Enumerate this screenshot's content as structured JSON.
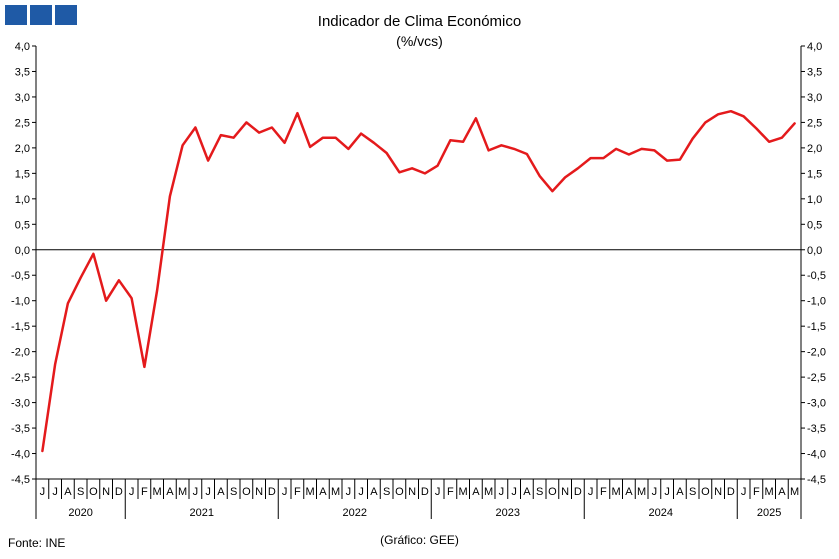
{
  "logo": {
    "name": "ine-logo",
    "color": "#1f5aa6"
  },
  "header": {
    "title": "Indicador de Clima Económico",
    "subtitle": "(%/vcs)"
  },
  "footer": {
    "source": "Fonte: INE",
    "credit": "(Gráfico: GEE)"
  },
  "chart_data": {
    "type": "line",
    "title": "Indicador de Clima Económico",
    "subtitle": "(%/vcs)",
    "ylim": [
      -4.5,
      4.0
    ],
    "yticks": [
      "4,0",
      "3,5",
      "3,0",
      "2,5",
      "2,0",
      "1,5",
      "1,0",
      "0,5",
      "0,0",
      "-0,5",
      "-1,0",
      "-1,5",
      "-2,0",
      "-2,5",
      "-3,0",
      "-3,5",
      "-4,0",
      "-4,5"
    ],
    "grid": false,
    "line_color": "#e41a1c",
    "x_month_labels": [
      "J",
      "J",
      "A",
      "S",
      "O",
      "N",
      "D",
      "J",
      "F",
      "M",
      "A",
      "M",
      "J",
      "J",
      "A",
      "S",
      "O",
      "N",
      "D",
      "J",
      "F",
      "M",
      "A",
      "M",
      "J",
      "J",
      "A",
      "S",
      "O",
      "N",
      "D",
      "J",
      "F",
      "M",
      "A",
      "M",
      "J",
      "J",
      "A",
      "S",
      "O",
      "N",
      "D",
      "J",
      "F",
      "M",
      "A",
      "M",
      "J",
      "J",
      "A",
      "S",
      "O",
      "N",
      "D",
      "J",
      "F",
      "M",
      "A",
      "M"
    ],
    "year_labels": [
      {
        "label": "2020",
        "months": 7
      },
      {
        "label": "2021",
        "months": 12
      },
      {
        "label": "2022",
        "months": 12
      },
      {
        "label": "2023",
        "months": 12
      },
      {
        "label": "2024",
        "months": 12
      },
      {
        "label": "2025",
        "months": 5
      }
    ],
    "series": [
      {
        "values": [
          -3.95,
          -2.25,
          -1.05,
          -0.55,
          -0.08,
          -1.0,
          -0.6,
          -0.95,
          -2.3,
          -0.8,
          1.05,
          2.05,
          2.4,
          1.75,
          2.25,
          2.2,
          2.5,
          2.3,
          2.4,
          2.1,
          2.68,
          2.02,
          2.2,
          2.2,
          1.98,
          2.28,
          2.1,
          1.9,
          1.52,
          1.6,
          1.5,
          1.65,
          2.15,
          2.12,
          2.58,
          1.95,
          2.05,
          1.98,
          1.88,
          1.45,
          1.15,
          1.42,
          1.6,
          1.8,
          1.8,
          1.98,
          1.87,
          1.98,
          1.95,
          1.75,
          1.77,
          2.18,
          2.5,
          2.66,
          2.72,
          2.62,
          2.38,
          2.12,
          2.2,
          2.48
        ]
      }
    ]
  }
}
